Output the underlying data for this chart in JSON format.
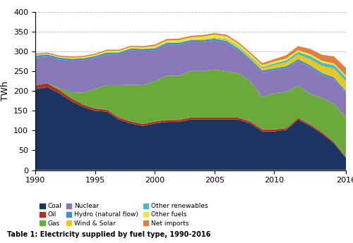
{
  "years": [
    1990,
    1991,
    1992,
    1993,
    1994,
    1995,
    1996,
    1997,
    1998,
    1999,
    2000,
    2001,
    2002,
    2003,
    2004,
    2005,
    2006,
    2007,
    2008,
    2009,
    2010,
    2011,
    2012,
    2013,
    2014,
    2015,
    2016
  ],
  "coal": [
    205,
    210,
    195,
    175,
    160,
    150,
    148,
    128,
    118,
    112,
    118,
    122,
    122,
    128,
    128,
    128,
    128,
    128,
    118,
    98,
    98,
    102,
    128,
    112,
    92,
    68,
    30
  ],
  "oil": [
    10,
    10,
    8,
    7,
    6,
    6,
    5,
    5,
    5,
    5,
    5,
    5,
    5,
    5,
    5,
    5,
    5,
    5,
    5,
    5,
    5,
    4,
    4,
    4,
    4,
    3,
    3
  ],
  "gas": [
    0,
    0,
    5,
    15,
    30,
    50,
    62,
    82,
    93,
    98,
    102,
    112,
    112,
    118,
    118,
    122,
    117,
    112,
    102,
    82,
    92,
    92,
    82,
    77,
    87,
    97,
    100
  ],
  "nuclear": [
    70,
    68,
    72,
    80,
    82,
    78,
    78,
    78,
    87,
    87,
    78,
    78,
    78,
    73,
    73,
    73,
    72,
    58,
    52,
    62,
    58,
    60,
    62,
    68,
    58,
    62,
    62
  ],
  "hydro": [
    5,
    5,
    5,
    5,
    5,
    5,
    5,
    5,
    5,
    5,
    5,
    5,
    5,
    5,
    5,
    5,
    5,
    5,
    5,
    5,
    5,
    5,
    5,
    5,
    5,
    5,
    5
  ],
  "wind_solar": [
    0,
    0,
    0,
    0,
    0,
    0,
    0,
    0,
    0,
    0,
    1,
    1,
    1,
    1,
    2,
    2,
    3,
    4,
    5,
    6,
    8,
    10,
    12,
    15,
    18,
    22,
    25
  ],
  "other_renewables": [
    0,
    0,
    0,
    0,
    0,
    0,
    0,
    0,
    0,
    0,
    1,
    1,
    1,
    1,
    1,
    1,
    2,
    2,
    2,
    3,
    4,
    5,
    6,
    8,
    8,
    9,
    10
  ],
  "other_fuels": [
    2,
    2,
    2,
    3,
    3,
    3,
    4,
    4,
    4,
    4,
    4,
    4,
    5,
    5,
    6,
    7,
    7,
    6,
    5,
    5,
    5,
    5,
    5,
    5,
    5,
    4,
    4
  ],
  "net_imports": [
    3,
    3,
    3,
    3,
    3,
    3,
    3,
    3,
    3,
    3,
    4,
    4,
    4,
    4,
    4,
    4,
    4,
    4,
    4,
    5,
    6,
    8,
    10,
    13,
    15,
    18,
    20
  ],
  "colors": {
    "coal": "#1c3461",
    "oil": "#b03020",
    "gas": "#6aaa3a",
    "nuclear": "#8878b8",
    "hydro": "#4090c0",
    "wind_solar": "#e8c820",
    "other_renewables": "#50b8c0",
    "other_fuels": "#e8e840",
    "net_imports": "#e08040"
  },
  "labels": {
    "coal": "Coal",
    "oil": "Oil",
    "gas": "Gas",
    "nuclear": "Nuclear",
    "hydro": "Hydro (natural flow)",
    "wind_solar": "Wind & Solar",
    "other_renewables": "Other renewables",
    "other_fuels": "Other fuels",
    "net_imports": "Net imports"
  },
  "ylabel": "TWh",
  "ylim": [
    0,
    400
  ],
  "yticks": [
    0,
    50,
    100,
    150,
    200,
    250,
    300,
    350,
    400
  ],
  "xticks": [
    1990,
    1995,
    2000,
    2005,
    2010,
    2016
  ],
  "caption": "Table 1: Electricity supplied by fuel type, 1990-2016",
  "background_color": "#ffffff"
}
